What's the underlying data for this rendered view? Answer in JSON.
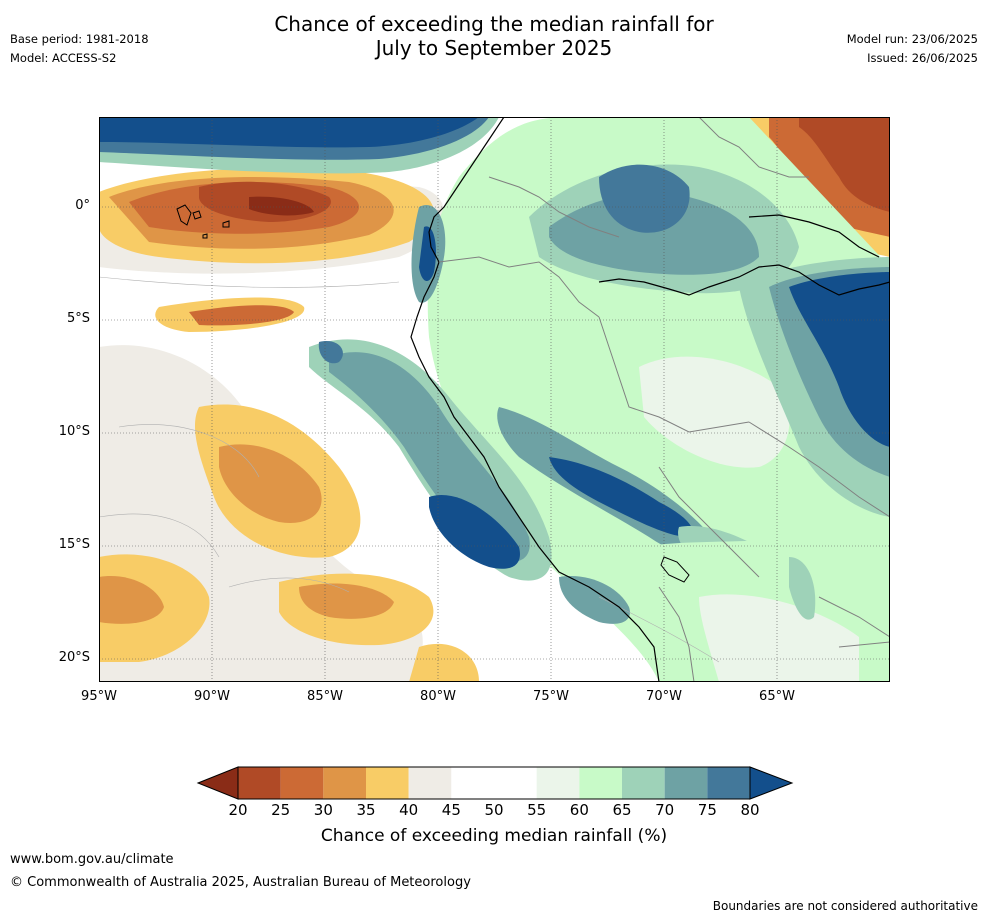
{
  "title_line1": "Chance of exceeding the median rainfall for",
  "title_line2": "July to September 2025",
  "meta_left": [
    "Base period: 1981-2018",
    "Model: ACCESS-S2"
  ],
  "meta_right": [
    "Model run: 23/06/2025",
    "Issued: 26/06/2025"
  ],
  "axes": {
    "x_ticks": [
      "95°W",
      "90°W",
      "85°W",
      "80°W",
      "75°W",
      "70°W",
      "65°W"
    ],
    "y_ticks": [
      "0°",
      "5°S",
      "10°S",
      "15°S",
      "20°S"
    ],
    "lon_range": [
      -95,
      -60
    ],
    "lat_range": [
      -21,
      4
    ]
  },
  "colorbar": {
    "ticks": [
      "20",
      "25",
      "30",
      "35",
      "40",
      "45",
      "50",
      "55",
      "60",
      "65",
      "70",
      "75",
      "80"
    ],
    "label": "Chance of exceeding median rainfall (%)",
    "colors": [
      "#8a2c17",
      "#b04a26",
      "#cc6a35",
      "#df9547",
      "#f8cc66",
      "#efece6",
      "#ffffff",
      "#ffffff",
      "#ebf5ea",
      "#c8fac8",
      "#9ed2b8",
      "#6ea2a4",
      "#43789a",
      "#134f8c"
    ]
  },
  "footer": {
    "url": "www.bom.gov.au/climate",
    "copyright": "© Commonwealth of Australia 2025, Australian Bureau of Meteorology",
    "disclaimer": "Boundaries are not considered authoritative"
  }
}
